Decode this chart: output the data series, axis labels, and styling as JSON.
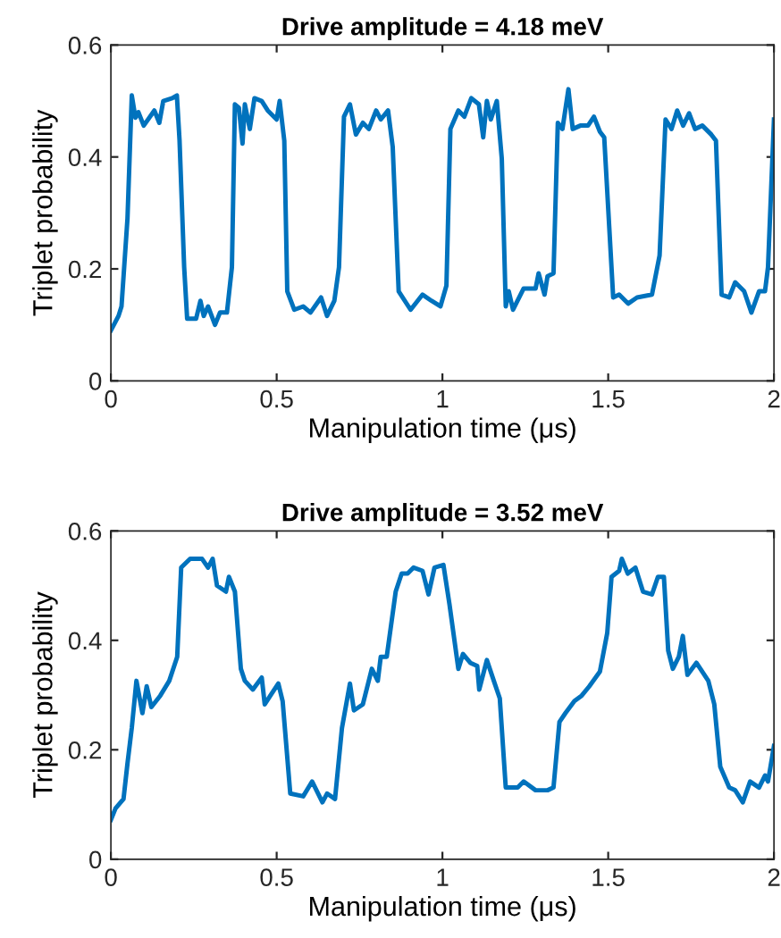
{
  "chart_data": [
    {
      "type": "line",
      "title": "Drive amplitude = 4.18 meV",
      "xlabel": "Manipulation time (μs)",
      "ylabel": "Triplet probability",
      "xlim": [
        0,
        2
      ],
      "ylim": [
        0,
        0.6
      ],
      "xticks": [
        0,
        0.5,
        1,
        1.5,
        2
      ],
      "yticks": [
        0,
        0.2,
        0.4,
        0.6
      ],
      "grid": false,
      "legend": false,
      "marker": "none",
      "line_style": "solid",
      "series": [
        {
          "color": "#0072bd",
          "x": [
            0,
            0.023,
            0.032,
            0.05,
            0.063,
            0.074,
            0.083,
            0.099,
            0.131,
            0.146,
            0.158,
            0.185,
            0.199,
            0.207,
            0.221,
            0.23,
            0.257,
            0.27,
            0.28,
            0.293,
            0.314,
            0.329,
            0.35,
            0.365,
            0.374,
            0.386,
            0.397,
            0.404,
            0.419,
            0.433,
            0.455,
            0.473,
            0.5,
            0.509,
            0.523,
            0.532,
            0.553,
            0.58,
            0.602,
            0.634,
            0.652,
            0.674,
            0.688,
            0.703,
            0.721,
            0.739,
            0.76,
            0.778,
            0.8,
            0.814,
            0.836,
            0.85,
            0.868,
            0.904,
            0.94,
            0.967,
            0.994,
            1.012,
            1.024,
            1.048,
            1.066,
            1.087,
            1.11,
            1.123,
            1.134,
            1.146,
            1.164,
            1.179,
            1.191,
            1.2,
            1.213,
            1.245,
            1.281,
            1.29,
            1.308,
            1.317,
            1.335,
            1.348,
            1.362,
            1.38,
            1.393,
            1.416,
            1.439,
            1.457,
            1.475,
            1.488,
            1.515,
            1.533,
            1.56,
            1.587,
            1.632,
            1.655,
            1.673,
            1.691,
            1.708,
            1.726,
            1.744,
            1.762,
            1.784,
            1.811,
            1.825,
            1.842,
            1.865,
            1.883,
            1.91,
            1.932,
            1.955,
            1.973,
            1.982,
            2.0
          ],
          "values": [
            0.09,
            0.116,
            0.133,
            0.29,
            0.51,
            0.47,
            0.48,
            0.456,
            0.483,
            0.461,
            0.5,
            0.505,
            0.51,
            0.43,
            0.203,
            0.111,
            0.111,
            0.143,
            0.116,
            0.133,
            0.1,
            0.122,
            0.122,
            0.203,
            0.494,
            0.488,
            0.424,
            0.494,
            0.45,
            0.505,
            0.5,
            0.483,
            0.467,
            0.5,
            0.429,
            0.16,
            0.127,
            0.133,
            0.122,
            0.149,
            0.116,
            0.143,
            0.203,
            0.472,
            0.494,
            0.44,
            0.461,
            0.45,
            0.483,
            0.467,
            0.483,
            0.418,
            0.16,
            0.127,
            0.154,
            0.143,
            0.133,
            0.17,
            0.45,
            0.483,
            0.472,
            0.505,
            0.494,
            0.435,
            0.5,
            0.467,
            0.5,
            0.397,
            0.133,
            0.16,
            0.127,
            0.165,
            0.165,
            0.192,
            0.154,
            0.187,
            0.192,
            0.461,
            0.45,
            0.521,
            0.45,
            0.456,
            0.456,
            0.472,
            0.445,
            0.435,
            0.149,
            0.154,
            0.138,
            0.149,
            0.154,
            0.224,
            0.467,
            0.45,
            0.483,
            0.456,
            0.478,
            0.45,
            0.456,
            0.44,
            0.429,
            0.154,
            0.149,
            0.176,
            0.16,
            0.122,
            0.16,
            0.16,
            0.203,
            0.467
          ]
        }
      ]
    },
    {
      "type": "line",
      "title": "Drive amplitude = 3.52 meV",
      "xlabel": "Manipulation time (μs)",
      "ylabel": "Triplet probability",
      "xlim": [
        0,
        2
      ],
      "ylim": [
        0,
        0.6
      ],
      "xticks": [
        0,
        0.5,
        1,
        1.5,
        2
      ],
      "yticks": [
        0,
        0.2,
        0.4,
        0.6
      ],
      "grid": false,
      "legend": false,
      "marker": "none",
      "line_style": "solid",
      "series": [
        {
          "color": "#0072bd",
          "x": [
            0,
            0.014,
            0.038,
            0.05,
            0.063,
            0.077,
            0.095,
            0.108,
            0.122,
            0.149,
            0.176,
            0.2,
            0.212,
            0.239,
            0.275,
            0.293,
            0.307,
            0.32,
            0.347,
            0.356,
            0.374,
            0.392,
            0.404,
            0.428,
            0.455,
            0.464,
            0.481,
            0.505,
            0.518,
            0.541,
            0.58,
            0.607,
            0.638,
            0.652,
            0.676,
            0.697,
            0.721,
            0.733,
            0.76,
            0.787,
            0.805,
            0.814,
            0.832,
            0.859,
            0.877,
            0.895,
            0.913,
            0.94,
            0.958,
            0.976,
            1.003,
            1.021,
            1.048,
            1.062,
            1.084,
            1.105,
            1.111,
            1.134,
            1.155,
            1.173,
            1.191,
            1.227,
            1.245,
            1.281,
            1.317,
            1.335,
            1.353,
            1.371,
            1.398,
            1.42,
            1.443,
            1.475,
            1.497,
            1.51,
            1.533,
            1.541,
            1.559,
            1.582,
            1.605,
            1.632,
            1.65,
            1.668,
            1.681,
            1.695,
            1.713,
            1.725,
            1.739,
            1.766,
            1.802,
            1.82,
            1.838,
            1.865,
            1.883,
            1.906,
            1.928,
            1.955,
            1.973,
            1.982,
            2.0
          ],
          "values": [
            0.072,
            0.093,
            0.11,
            0.175,
            0.24,
            0.326,
            0.267,
            0.316,
            0.278,
            0.299,
            0.326,
            0.37,
            0.533,
            0.549,
            0.549,
            0.533,
            0.549,
            0.5,
            0.489,
            0.516,
            0.489,
            0.348,
            0.326,
            0.31,
            0.332,
            0.283,
            0.299,
            0.321,
            0.289,
            0.12,
            0.115,
            0.142,
            0.104,
            0.12,
            0.11,
            0.24,
            0.321,
            0.272,
            0.283,
            0.348,
            0.326,
            0.37,
            0.37,
            0.489,
            0.522,
            0.522,
            0.533,
            0.527,
            0.484,
            0.533,
            0.538,
            0.467,
            0.348,
            0.375,
            0.359,
            0.353,
            0.31,
            0.364,
            0.326,
            0.294,
            0.131,
            0.131,
            0.142,
            0.126,
            0.126,
            0.131,
            0.251,
            0.267,
            0.289,
            0.299,
            0.316,
            0.343,
            0.413,
            0.516,
            0.527,
            0.549,
            0.522,
            0.533,
            0.489,
            0.484,
            0.516,
            0.516,
            0.381,
            0.348,
            0.37,
            0.408,
            0.337,
            0.359,
            0.326,
            0.283,
            0.169,
            0.131,
            0.126,
            0.104,
            0.142,
            0.131,
            0.153,
            0.142,
            0.207
          ]
        }
      ]
    }
  ]
}
